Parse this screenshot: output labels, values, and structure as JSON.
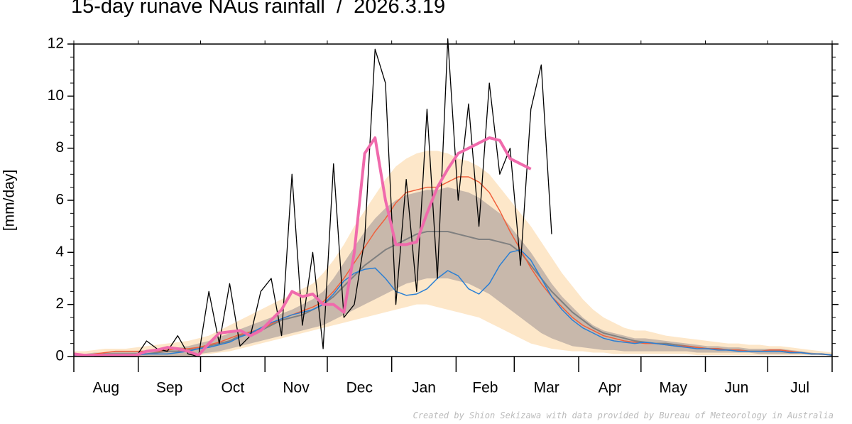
{
  "chart_data": {
    "type": "line",
    "title": "15-day runave NAus rainfall  /  2026.3.19",
    "y_label": "[mm/day]",
    "credit": "Created by Shion Sekizawa with data provided by Bureau of Meteorology in Australia",
    "month_labels": [
      "Aug",
      "Sep",
      "Oct",
      "Nov",
      "Dec",
      "Jan",
      "Feb",
      "Mar",
      "Apr",
      "May",
      "Jun",
      "Jul"
    ],
    "xlim": [
      0,
      365
    ],
    "xticks": [
      0,
      31,
      61,
      92,
      122,
      153,
      184,
      212,
      243,
      273,
      304,
      334,
      365
    ],
    "ylim": [
      0,
      12
    ],
    "yticks": [
      0,
      2,
      4,
      6,
      8,
      10,
      12
    ],
    "x": [
      0,
      5,
      10,
      15,
      20,
      25,
      30,
      35,
      40,
      45,
      50,
      55,
      60,
      65,
      70,
      75,
      80,
      85,
      90,
      95,
      100,
      105,
      110,
      115,
      120,
      125,
      130,
      135,
      140,
      145,
      150,
      155,
      160,
      165,
      170,
      175,
      180,
      185,
      190,
      195,
      200,
      205,
      210,
      215,
      220,
      225,
      230,
      235,
      240,
      245,
      250,
      255,
      260,
      265,
      270,
      275,
      280,
      285,
      290,
      295,
      300,
      305,
      310,
      315,
      320,
      325,
      330,
      335,
      340,
      345,
      350,
      355,
      360,
      365
    ],
    "bands": [
      {
        "color": "#fde7c9",
        "lower": [
          0,
          0,
          0,
          0,
          0,
          0,
          0,
          0,
          0,
          0,
          0,
          0,
          0.05,
          0.1,
          0.15,
          0.2,
          0.3,
          0.4,
          0.5,
          0.6,
          0.7,
          0.8,
          0.9,
          1.0,
          1.1,
          1.2,
          1.3,
          1.4,
          1.5,
          1.6,
          1.7,
          1.8,
          1.9,
          2.0,
          2.0,
          1.9,
          1.8,
          1.7,
          1.6,
          1.5,
          1.3,
          1.1,
          0.9,
          0.7,
          0.5,
          0.4,
          0.3,
          0.25,
          0.2,
          0.2,
          0.15,
          0.15,
          0.1,
          0.1,
          0.1,
          0.1,
          0.1,
          0.1,
          0.1,
          0.1,
          0.05,
          0.05,
          0.05,
          0.05,
          0.05,
          0.05,
          0.05,
          0.05,
          0.05,
          0.05,
          0.05,
          0.05,
          0.05,
          0.05
        ],
        "upper": [
          0.2,
          0.2,
          0.25,
          0.3,
          0.3,
          0.3,
          0.35,
          0.4,
          0.45,
          0.5,
          0.55,
          0.6,
          0.7,
          0.8,
          1.0,
          1.2,
          1.4,
          1.6,
          1.8,
          2.0,
          2.2,
          2.4,
          2.6,
          2.8,
          3.2,
          3.7,
          4.3,
          5.0,
          5.6,
          6.2,
          6.8,
          7.3,
          7.6,
          7.8,
          7.9,
          7.9,
          7.8,
          7.6,
          7.5,
          7.3,
          7.0,
          6.5,
          6.0,
          5.5,
          5.0,
          4.4,
          3.8,
          3.2,
          2.7,
          2.2,
          1.8,
          1.5,
          1.3,
          1.1,
          1.0,
          1.0,
          0.9,
          0.8,
          0.75,
          0.7,
          0.65,
          0.6,
          0.55,
          0.5,
          0.5,
          0.45,
          0.45,
          0.4,
          0.4,
          0.35,
          0.3,
          0.25,
          0.2,
          0.15
        ]
      },
      {
        "color": "#c8b8ab",
        "lower": [
          0,
          0,
          0,
          0,
          0,
          0,
          0,
          0,
          0,
          0,
          0,
          0,
          0.1,
          0.15,
          0.2,
          0.3,
          0.4,
          0.5,
          0.6,
          0.7,
          0.8,
          0.9,
          1.0,
          1.1,
          1.2,
          1.4,
          1.6,
          1.8,
          2.0,
          2.2,
          2.4,
          2.6,
          2.8,
          2.9,
          3.0,
          3.0,
          3.0,
          2.9,
          2.8,
          2.6,
          2.4,
          2.1,
          1.8,
          1.5,
          1.2,
          0.9,
          0.7,
          0.55,
          0.4,
          0.35,
          0.3,
          0.25,
          0.25,
          0.2,
          0.2,
          0.2,
          0.2,
          0.2,
          0.2,
          0.2,
          0.15,
          0.15,
          0.15,
          0.15,
          0.15,
          0.15,
          0.1,
          0.1,
          0.1,
          0.1,
          0.1,
          0.1,
          0.05,
          0.05
        ],
        "upper": [
          0.1,
          0.1,
          0.15,
          0.15,
          0.2,
          0.2,
          0.2,
          0.25,
          0.3,
          0.3,
          0.35,
          0.4,
          0.5,
          0.6,
          0.75,
          0.9,
          1.05,
          1.2,
          1.35,
          1.5,
          1.65,
          1.8,
          2.0,
          2.2,
          2.5,
          3.0,
          3.6,
          4.2,
          4.8,
          5.3,
          5.7,
          6.0,
          6.2,
          6.3,
          6.4,
          6.4,
          6.5,
          6.4,
          6.3,
          6.1,
          5.8,
          5.5,
          5.0,
          4.5,
          4.0,
          3.4,
          2.8,
          2.3,
          1.9,
          1.5,
          1.2,
          1.0,
          0.9,
          0.8,
          0.7,
          0.7,
          0.65,
          0.6,
          0.55,
          0.5,
          0.45,
          0.4,
          0.4,
          0.35,
          0.35,
          0.3,
          0.3,
          0.3,
          0.3,
          0.25,
          0.2,
          0.15,
          0.1,
          0.1
        ]
      }
    ],
    "series": [
      {
        "color": "#808080",
        "width": 2,
        "values": [
          0.05,
          0.05,
          0.05,
          0.1,
          0.1,
          0.1,
          0.1,
          0.1,
          0.15,
          0.2,
          0.2,
          0.25,
          0.3,
          0.4,
          0.5,
          0.6,
          0.8,
          0.9,
          1.0,
          1.2,
          1.4,
          1.5,
          1.6,
          1.8,
          2.0,
          2.3,
          2.7,
          3.1,
          3.5,
          3.8,
          4.1,
          4.3,
          4.5,
          4.7,
          4.8,
          4.8,
          4.8,
          4.7,
          4.6,
          4.5,
          4.5,
          4.4,
          4.3,
          4.0,
          3.5,
          3.0,
          2.5,
          2.1,
          1.7,
          1.4,
          1.1,
          0.9,
          0.8,
          0.7,
          0.6,
          0.55,
          0.5,
          0.5,
          0.45,
          0.4,
          0.35,
          0.3,
          0.3,
          0.25,
          0.25,
          0.2,
          0.2,
          0.2,
          0.2,
          0.15,
          0.15,
          0.1,
          0.1,
          0.05
        ]
      },
      {
        "color": "#f0603c",
        "width": 1.5,
        "values": [
          0.05,
          0.05,
          0.1,
          0.15,
          0.2,
          0.2,
          0.2,
          0.2,
          0.2,
          0.25,
          0.3,
          0.3,
          0.35,
          0.45,
          0.55,
          0.7,
          0.85,
          0.95,
          1.05,
          1.25,
          1.45,
          1.6,
          1.75,
          1.9,
          2.1,
          2.5,
          3.0,
          3.6,
          4.2,
          4.8,
          5.3,
          5.9,
          6.3,
          6.4,
          6.5,
          6.5,
          6.7,
          6.9,
          6.9,
          6.7,
          6.3,
          5.6,
          4.8,
          4.1,
          3.4,
          2.8,
          2.3,
          1.9,
          1.5,
          1.2,
          1.0,
          0.8,
          0.7,
          0.6,
          0.55,
          0.5,
          0.5,
          0.45,
          0.4,
          0.4,
          0.35,
          0.3,
          0.3,
          0.25,
          0.25,
          0.2,
          0.2,
          0.25,
          0.25,
          0.2,
          0.15,
          0.1,
          0.1,
          0.05
        ]
      },
      {
        "color": "#2a7fd4",
        "width": 1.5,
        "values": [
          0.05,
          0.05,
          0.05,
          0.05,
          0.05,
          0.05,
          0.05,
          0.1,
          0.1,
          0.1,
          0.15,
          0.2,
          0.3,
          0.35,
          0.45,
          0.55,
          0.75,
          0.9,
          1.1,
          1.3,
          1.45,
          1.6,
          1.7,
          1.8,
          2.0,
          2.4,
          2.9,
          3.2,
          3.35,
          3.4,
          3.0,
          2.5,
          2.35,
          2.4,
          2.6,
          3.0,
          3.3,
          3.1,
          2.6,
          2.4,
          2.8,
          3.5,
          4.0,
          4.1,
          3.7,
          3.0,
          2.3,
          1.8,
          1.4,
          1.1,
          0.9,
          0.7,
          0.6,
          0.55,
          0.5,
          0.55,
          0.5,
          0.45,
          0.4,
          0.35,
          0.3,
          0.3,
          0.25,
          0.25,
          0.2,
          0.2,
          0.2,
          0.2,
          0.2,
          0.15,
          0.15,
          0.1,
          0.1,
          0.05
        ]
      },
      {
        "color": "#000000",
        "width": 1.3,
        "values": [
          0.1,
          0.05,
          0,
          0,
          0,
          0,
          0,
          0.6,
          0.3,
          0.2,
          0.8,
          0.1,
          0,
          2.5,
          0.5,
          2.8,
          0.4,
          0.8,
          2.5,
          3.0,
          0.8,
          7.0,
          1.2,
          4.0,
          0.3,
          7.4,
          1.5,
          2.0,
          4.5,
          11.8,
          10.5,
          2.0,
          6.8,
          2.5,
          9.5,
          3.0,
          12.2,
          6.0,
          9.7,
          5.0,
          10.5,
          7.0,
          8,
          3.5,
          9.5,
          11.2,
          4.7,
          null,
          null,
          null,
          null,
          null,
          null,
          null,
          null,
          null,
          null,
          null,
          null,
          null,
          null,
          null,
          null,
          null,
          null,
          null,
          null,
          null,
          null,
          null,
          null,
          null,
          null,
          null
        ]
      },
      {
        "color": "#f06aac",
        "width": 4,
        "values": [
          0.1,
          0.05,
          0.05,
          0.05,
          0.05,
          0.05,
          0.05,
          0.2,
          0.25,
          0.35,
          0.3,
          0.2,
          0.05,
          0.5,
          0.9,
          0.95,
          1.0,
          0.8,
          1.0,
          1.4,
          1.8,
          2.5,
          2.3,
          2.4,
          2.0,
          2.0,
          1.7,
          4.0,
          7.8,
          8.4,
          6.0,
          4.3,
          4.3,
          4.4,
          5.5,
          6.5,
          7.2,
          7.8,
          8.0,
          8.2,
          8.4,
          8.3,
          7.6,
          7.4,
          7.2,
          null,
          null,
          null,
          null,
          null,
          null,
          null,
          null,
          null,
          null,
          null,
          null,
          null,
          null,
          null,
          null,
          null,
          null,
          null,
          null,
          null,
          null,
          null,
          null,
          null,
          null,
          null,
          null,
          null
        ]
      }
    ]
  }
}
